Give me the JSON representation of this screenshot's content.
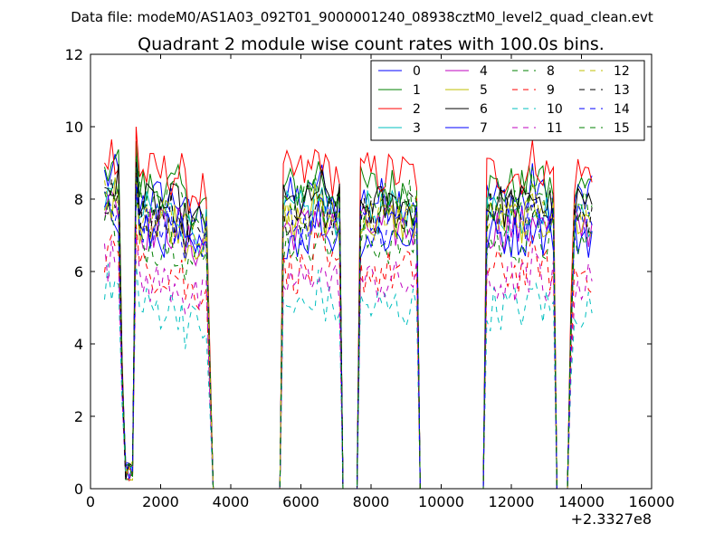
{
  "header": {
    "datafile": "Data file: modeM0/AS1A03_092T01_9000001240_08938cztM0_level2_quad_clean.evt"
  },
  "chart_data": {
    "type": "line",
    "title": "Quadrant 2 module wise count rates with 100.0s bins.",
    "xlabel": "",
    "ylabel": "",
    "x_offset_label": "+2.3327e8",
    "xlim": [
      0,
      16000
    ],
    "ylim": [
      0,
      12
    ],
    "x_ticks": [
      0,
      2000,
      4000,
      6000,
      8000,
      10000,
      12000,
      14000,
      16000
    ],
    "y_ticks": [
      0,
      2,
      4,
      6,
      8,
      10,
      12
    ],
    "x_tick_labels": [
      "0",
      "2000",
      "4000",
      "6000",
      "8000",
      "10000",
      "12000",
      "14000",
      "16000"
    ],
    "y_tick_labels": [
      "0",
      "2",
      "4",
      "6",
      "8",
      "10",
      "12"
    ],
    "grid": false,
    "legend_position": "top-right",
    "legend_columns": 4,
    "bin_width": 100,
    "segments": [
      {
        "start": 400,
        "end": 3400
      },
      {
        "start": 5500,
        "end": 7100
      },
      {
        "start": 7700,
        "end": 9300
      },
      {
        "start": 11300,
        "end": 13200
      },
      {
        "start": 13700,
        "end": 14300
      }
    ],
    "series": [
      {
        "name": "0",
        "color": "#0000ff",
        "dash": "solid",
        "level": 8.0
      },
      {
        "name": "1",
        "color": "#008000",
        "dash": "solid",
        "level": 8.3
      },
      {
        "name": "2",
        "color": "#ff0000",
        "dash": "solid",
        "level": 8.7
      },
      {
        "name": "3",
        "color": "#00bfbf",
        "dash": "solid",
        "level": 7.6
      },
      {
        "name": "4",
        "color": "#bf00bf",
        "dash": "solid",
        "level": 7.2
      },
      {
        "name": "5",
        "color": "#bfbf00",
        "dash": "solid",
        "level": 7.4
      },
      {
        "name": "6",
        "color": "#000000",
        "dash": "solid",
        "level": 7.8
      },
      {
        "name": "7",
        "color": "#0000ff",
        "dash": "solid",
        "level": 7.0
      },
      {
        "name": "8",
        "color": "#008000",
        "dash": "dashed",
        "level": 6.8
      },
      {
        "name": "9",
        "color": "#ff0000",
        "dash": "dashed",
        "level": 6.0
      },
      {
        "name": "10",
        "color": "#00bfbf",
        "dash": "dashed",
        "level": 5.0
      },
      {
        "name": "11",
        "color": "#bf00bf",
        "dash": "dashed",
        "level": 5.7
      },
      {
        "name": "12",
        "color": "#bfbf00",
        "dash": "dashed",
        "level": 7.5
      },
      {
        "name": "13",
        "color": "#000000",
        "dash": "dashed",
        "level": 7.6
      },
      {
        "name": "14",
        "color": "#0000ff",
        "dash": "dashed",
        "level": 7.3
      },
      {
        "name": "15",
        "color": "#008000",
        "dash": "dashed",
        "level": 7.9
      }
    ]
  }
}
